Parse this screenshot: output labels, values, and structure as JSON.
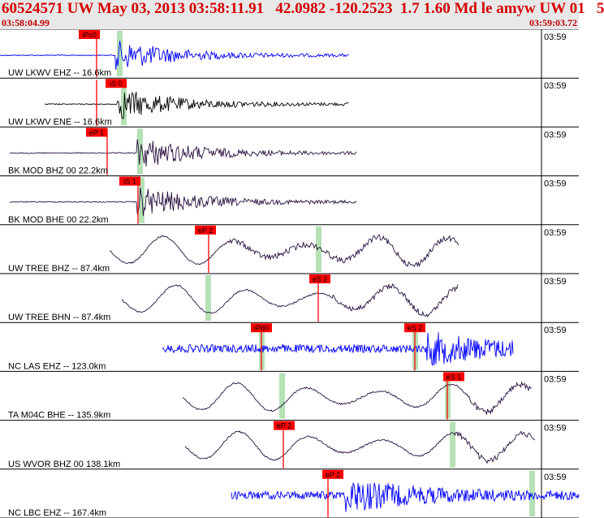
{
  "header": {
    "title": "60524571 UW May 03, 2013 03:58:11.91   42.0982 -120.2523  1.7 1.60 Md le amyw UW 01   5",
    "start_time": "03:58:04.99",
    "end_time": "03:59:03.72"
  },
  "colors": {
    "title": "#d40000",
    "pick_box": "#ff0000",
    "pick_bar": "#a8dca8",
    "blue_trace": "#0000ff",
    "dark_trace": "#2a1040",
    "black_trace": "#000000"
  },
  "traces": [
    {
      "label": "UW LKWV EHZ -- 16.6km",
      "time_label": "03:59",
      "picks": [
        "iPc0"
      ],
      "color": "blue",
      "style": "burst",
      "range": [
        0,
        430
      ],
      "burst": 148
    },
    {
      "label": "UW LKWV ENE -- 16.6km",
      "time_label": "03:59",
      "picks": [
        "iS 0"
      ],
      "color": "black",
      "style": "burst",
      "range": [
        55,
        430
      ],
      "burst": 150
    },
    {
      "label": "BK MOD BHZ 00 22.2km",
      "time_label": "03:59",
      "picks": [
        "eP 1"
      ],
      "color": "dark",
      "style": "burst",
      "range": [
        12,
        440
      ],
      "burst": 175
    },
    {
      "label": "BK MOD BHE 00 22.2km",
      "time_label": "03:59",
      "picks": [
        "iS 1"
      ],
      "color": "dark",
      "style": "burst",
      "range": [
        12,
        440
      ],
      "burst": 175
    },
    {
      "label": "UW TREE BHZ -- 87.4km",
      "time_label": "03:59",
      "picks": [
        "eP 2"
      ],
      "color": "dark",
      "style": "wave",
      "range": [
        135,
        565
      ],
      "burst": 280
    },
    {
      "label": "UW TREE BHN -- 87.4km",
      "time_label": "03:59",
      "picks": [
        "eS 2"
      ],
      "color": "dark",
      "style": "wave",
      "range": [
        150,
        565
      ],
      "burst": 410
    },
    {
      "label": "NC LAS EHZ -- 123.0km",
      "time_label": "03:59",
      "picks": [
        "iPd0",
        "eS 2"
      ],
      "color": "blue",
      "style": "noise",
      "range": [
        200,
        632
      ],
      "burst": 525
    },
    {
      "label": "TA M04C BHE -- 135.9km",
      "time_label": "03:59",
      "picks": [
        "eS 1"
      ],
      "color": "dark",
      "style": "wave",
      "range": [
        225,
        655
      ],
      "burst": 570
    },
    {
      "label": "US WVOR BHZ 00 138.1km",
      "time_label": "03:59",
      "picks": [
        "eP 2"
      ],
      "color": "dark",
      "style": "wave",
      "range": [
        228,
        660
      ],
      "burst": 560
    },
    {
      "label": "NC LBC EHZ -- 167.4km",
      "time_label": "03:59",
      "picks": [
        "eP 2"
      ],
      "color": "blue",
      "style": "noise",
      "range": [
        285,
        713
      ],
      "burst": 425
    }
  ]
}
